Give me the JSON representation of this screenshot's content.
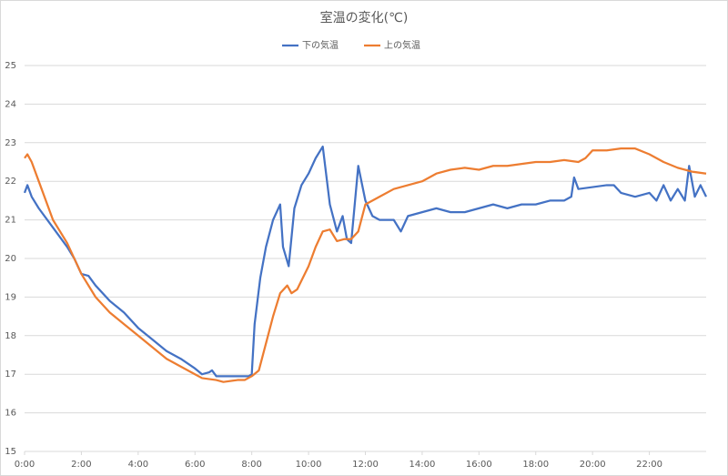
{
  "chart_data": {
    "type": "line",
    "title": "室温の変化(℃)",
    "xlim": [
      0,
      24
    ],
    "xticks": [
      {
        "value": 0,
        "label": "0:00"
      },
      {
        "value": 2,
        "label": "2:00"
      },
      {
        "value": 4,
        "label": "4:00"
      },
      {
        "value": 6,
        "label": "6:00"
      },
      {
        "value": 8,
        "label": "8:00"
      },
      {
        "value": 10,
        "label": "10:00"
      },
      {
        "value": 12,
        "label": "12:00"
      },
      {
        "value": 14,
        "label": "14:00"
      },
      {
        "value": 16,
        "label": "16:00"
      },
      {
        "value": 18,
        "label": "18:00"
      },
      {
        "value": 20,
        "label": "20:00"
      },
      {
        "value": 22,
        "label": "22:00"
      }
    ],
    "ylim": [
      15,
      25
    ],
    "yticks": [
      15,
      16,
      17,
      18,
      19,
      20,
      21,
      22,
      23,
      24,
      25
    ],
    "grid": true,
    "legend": "top",
    "series": [
      {
        "name": "下の気温",
        "color": "#4472c4",
        "x": [
          0,
          0.1,
          0.25,
          0.5,
          1,
          1.5,
          1.75,
          2,
          2.25,
          2.5,
          3,
          3.5,
          4,
          4.5,
          5,
          5.5,
          6,
          6.25,
          6.5,
          6.6,
          6.75,
          7,
          7.5,
          7.9,
          8,
          8.1,
          8.3,
          8.5,
          8.75,
          9,
          9.1,
          9.3,
          9.5,
          9.75,
          10,
          10.25,
          10.5,
          10.75,
          11,
          11.2,
          11.35,
          11.5,
          11.75,
          12,
          12.25,
          12.5,
          13,
          13.25,
          13.5,
          14,
          14.5,
          15,
          15.5,
          16,
          16.5,
          17,
          17.5,
          18,
          18.5,
          19,
          19.25,
          19.35,
          19.5,
          20,
          20.5,
          20.75,
          21,
          21.5,
          22,
          22.25,
          22.5,
          22.75,
          23,
          23.25,
          23.4,
          23.6,
          23.8,
          24
        ],
        "values": [
          21.7,
          21.9,
          21.6,
          21.3,
          20.8,
          20.3,
          20.0,
          19.6,
          19.55,
          19.3,
          18.9,
          18.6,
          18.2,
          17.9,
          17.6,
          17.4,
          17.15,
          17.0,
          17.05,
          17.1,
          16.95,
          16.95,
          16.95,
          16.95,
          17.0,
          18.3,
          19.5,
          20.3,
          21.0,
          21.4,
          20.3,
          19.8,
          21.3,
          21.9,
          22.2,
          22.6,
          22.9,
          21.4,
          20.7,
          21.1,
          20.5,
          20.4,
          22.4,
          21.5,
          21.1,
          21.0,
          21.0,
          20.7,
          21.1,
          21.2,
          21.3,
          21.2,
          21.2,
          21.3,
          21.4,
          21.3,
          21.4,
          21.4,
          21.5,
          21.5,
          21.6,
          22.1,
          21.8,
          21.85,
          21.9,
          21.9,
          21.7,
          21.6,
          21.7,
          21.5,
          21.9,
          21.5,
          21.8,
          21.5,
          22.4,
          21.6,
          21.9,
          21.6
        ]
      },
      {
        "name": "上の気温",
        "color": "#ed7d31",
        "x": [
          0,
          0.1,
          0.25,
          0.5,
          1,
          1.5,
          2,
          2.5,
          3,
          3.5,
          4,
          4.5,
          5,
          5.5,
          6,
          6.25,
          6.75,
          7,
          7.5,
          7.75,
          8,
          8.25,
          8.5,
          8.75,
          9,
          9.25,
          9.4,
          9.6,
          10,
          10.25,
          10.5,
          10.75,
          11,
          11.25,
          11.5,
          11.75,
          12,
          12.5,
          13,
          13.5,
          14,
          14.5,
          15,
          15.5,
          16,
          16.5,
          17,
          17.5,
          18,
          18.5,
          19,
          19.5,
          19.75,
          20,
          20.5,
          21,
          21.5,
          22,
          22.5,
          23,
          23.5,
          24
        ],
        "values": [
          22.6,
          22.7,
          22.5,
          22.0,
          21.0,
          20.4,
          19.6,
          19.0,
          18.6,
          18.3,
          18.0,
          17.7,
          17.4,
          17.2,
          17.0,
          16.9,
          16.85,
          16.8,
          16.85,
          16.85,
          16.95,
          17.1,
          17.8,
          18.5,
          19.1,
          19.3,
          19.1,
          19.2,
          19.8,
          20.3,
          20.7,
          20.75,
          20.45,
          20.5,
          20.5,
          20.7,
          21.4,
          21.6,
          21.8,
          21.9,
          22.0,
          22.2,
          22.3,
          22.35,
          22.3,
          22.4,
          22.4,
          22.45,
          22.5,
          22.5,
          22.55,
          22.5,
          22.6,
          22.8,
          22.8,
          22.85,
          22.85,
          22.7,
          22.5,
          22.35,
          22.25,
          22.2
        ]
      }
    ]
  }
}
